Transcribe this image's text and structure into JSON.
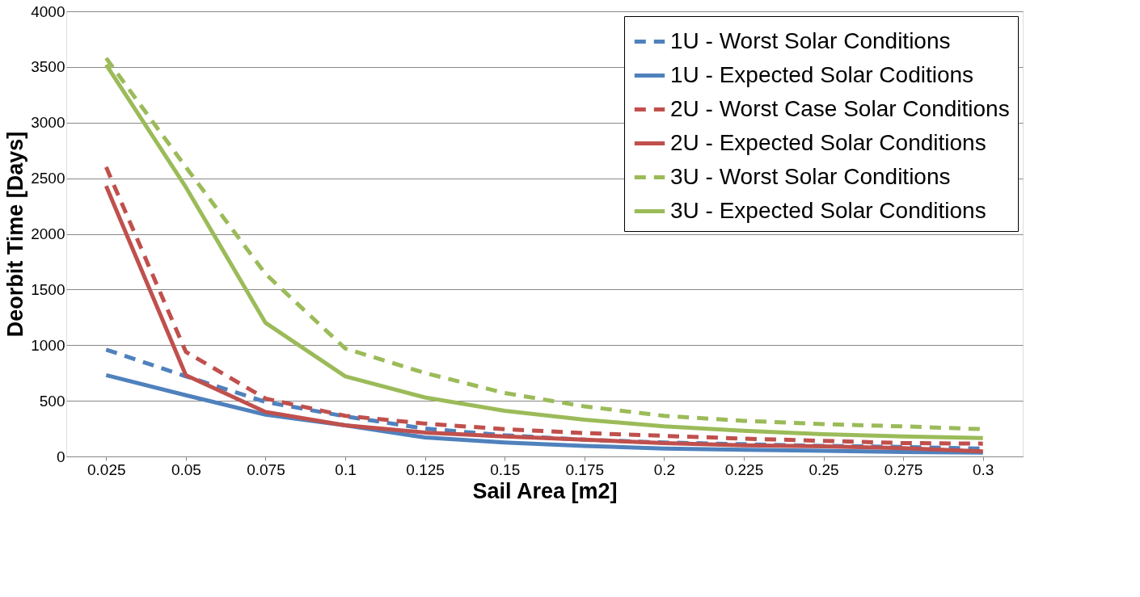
{
  "chart_data": {
    "type": "line",
    "xlabel": "Sail Area [m2]",
    "ylabel": "Deorbit Time [Days]",
    "categories": [
      "0.025",
      "0.05",
      "0.075",
      "0.1",
      "0.125",
      "0.15",
      "0.175",
      "0.2",
      "0.225",
      "0.25",
      "0.275",
      "0.3"
    ],
    "ylim": [
      0,
      4000
    ],
    "yticks": [
      0,
      500,
      1000,
      1500,
      2000,
      2500,
      3000,
      3500,
      4000
    ],
    "grid": "y",
    "legend": "top right",
    "marker": "none",
    "series": [
      {
        "name": "1U - Worst Solar Conditions",
        "color": "#4f81bd",
        "line_style": "dashed",
        "values": [
          960,
          720,
          490,
          360,
          250,
          190,
          150,
          125,
          110,
          95,
          85,
          70
        ]
      },
      {
        "name": "1U - Expected Solar Coditions",
        "color": "#4f81bd",
        "line_style": "solid",
        "values": [
          730,
          550,
          375,
          280,
          170,
          125,
          95,
          70,
          60,
          50,
          40,
          35
        ]
      },
      {
        "name": "2U - Worst Case Solar Conditions",
        "color": "#c0504d",
        "line_style": "dashed",
        "values": [
          2600,
          940,
          520,
          365,
          295,
          245,
          210,
          185,
          160,
          140,
          120,
          115
        ]
      },
      {
        "name": "2U - Expected Solar Conditions",
        "color": "#c0504d",
        "line_style": "solid",
        "values": [
          2430,
          730,
          400,
          280,
          215,
          180,
          150,
          120,
          100,
          90,
          75,
          45
        ]
      },
      {
        "name": "3U - Worst Solar Conditions",
        "color": "#9bbb59",
        "line_style": "dashed",
        "values": [
          3580,
          2600,
          1640,
          970,
          750,
          570,
          450,
          365,
          320,
          290,
          270,
          245
        ]
      },
      {
        "name": "3U - Expected Solar Conditions",
        "color": "#9bbb59",
        "line_style": "solid",
        "values": [
          3520,
          2420,
          1200,
          720,
          530,
          410,
          330,
          270,
          230,
          200,
          180,
          165
        ]
      }
    ]
  }
}
